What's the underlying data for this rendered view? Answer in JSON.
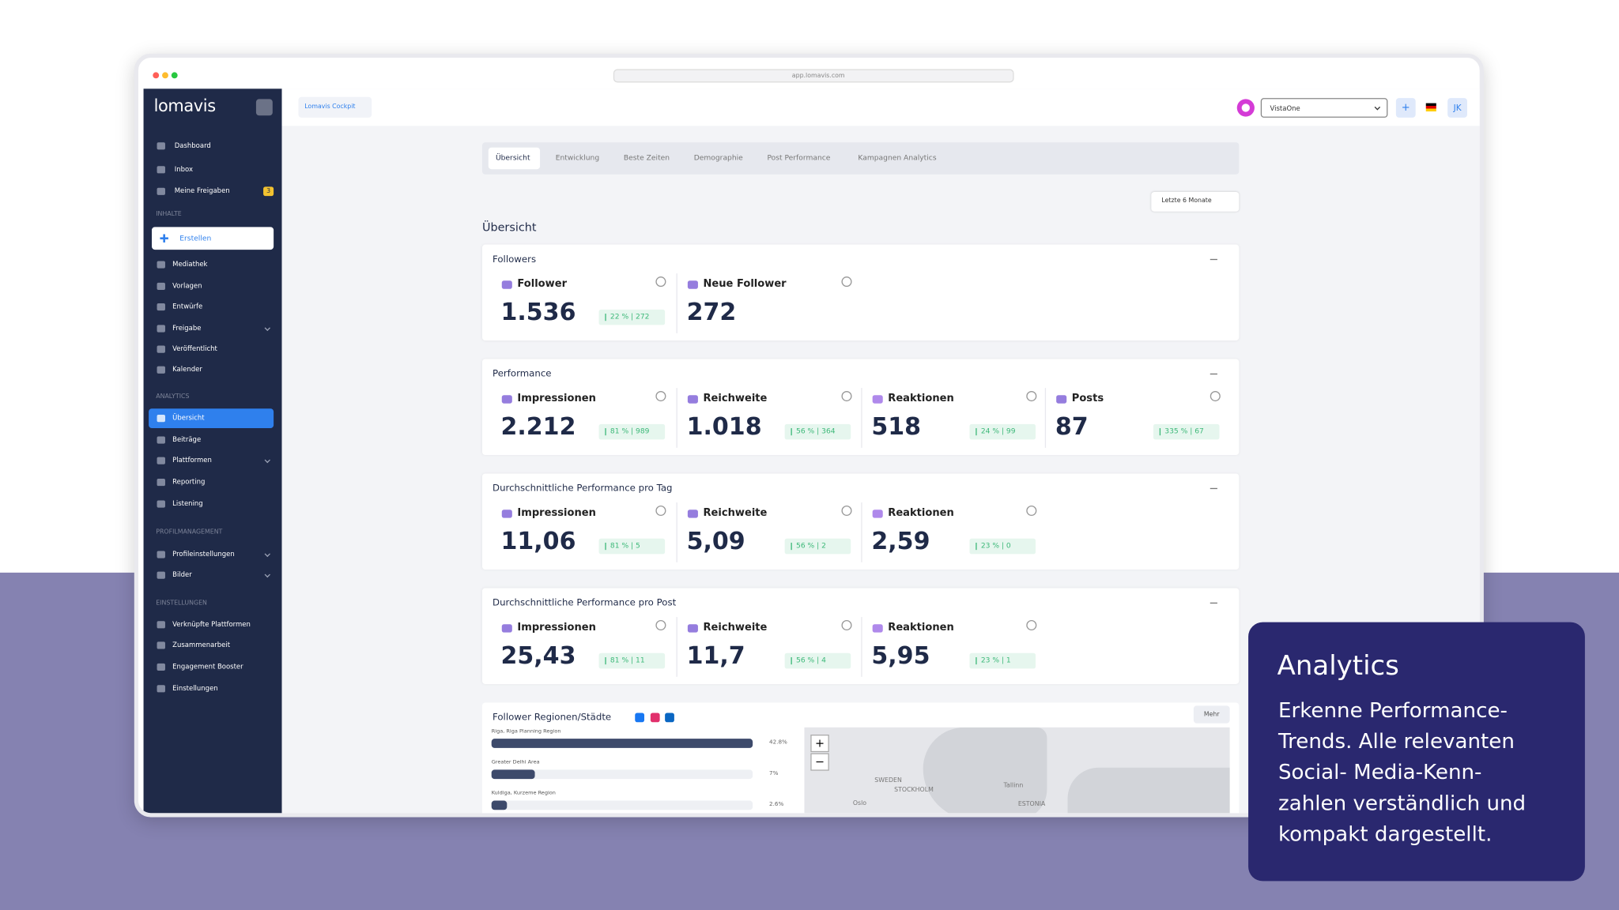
{
  "browser": {
    "url": "app.lomavis.com"
  },
  "sidebar": {
    "logo": "lomavis",
    "entries": [
      {
        "kind": "item",
        "label": "Dashboard"
      },
      {
        "kind": "item",
        "label": "Inbox"
      },
      {
        "kind": "item",
        "label": "Meine Freigaben",
        "badge": "3"
      },
      {
        "kind": "section",
        "label": "INHALTE"
      },
      {
        "kind": "button",
        "label": "Erstellen"
      },
      {
        "kind": "item",
        "label": "Mediathek"
      },
      {
        "kind": "item",
        "label": "Vorlagen"
      },
      {
        "kind": "item",
        "label": "Entwürfe"
      },
      {
        "kind": "item",
        "label": "Freigabe",
        "chevron": true
      },
      {
        "kind": "item",
        "label": "Veröffentlicht"
      },
      {
        "kind": "item",
        "label": "Kalender"
      },
      {
        "kind": "section",
        "label": "ANALYTICS"
      },
      {
        "kind": "item",
        "label": "Übersicht",
        "active": true
      },
      {
        "kind": "item",
        "label": "Beiträge"
      },
      {
        "kind": "item",
        "label": "Plattformen",
        "chevron": true
      },
      {
        "kind": "item",
        "label": "Reporting"
      },
      {
        "kind": "item",
        "label": "Listening"
      },
      {
        "kind": "section",
        "label": "PROFILMANAGEMENT"
      },
      {
        "kind": "item",
        "label": "Profileinstellungen",
        "chevron": true
      },
      {
        "kind": "item",
        "label": "Bilder",
        "chevron": true
      },
      {
        "kind": "section",
        "label": "EINSTELLUNGEN"
      },
      {
        "kind": "item",
        "label": "Verknüpfte Plattformen"
      },
      {
        "kind": "item",
        "label": "Zusammenarbeit"
      },
      {
        "kind": "item",
        "label": "Engagement Booster"
      },
      {
        "kind": "item",
        "label": "Einstellungen"
      }
    ]
  },
  "topbar": {
    "cockpit": "Lomavis Cockpit",
    "account": "VistaOne",
    "add": "+",
    "initials": "JK"
  },
  "tabs": [
    "Übersicht",
    "Entwicklung",
    "Beste Zeiten",
    "Demographie",
    "Post Performance",
    "Kampagnen Analytics"
  ],
  "date_range": "Letzte 6 Monate",
  "section_title": "Übersicht",
  "cards": [
    {
      "title": "Followers",
      "metrics": [
        {
          "label": "Follower",
          "value": "1.536",
          "change": "22 % | 272"
        },
        {
          "label": "Neue Follower",
          "value": "272"
        }
      ]
    },
    {
      "title": "Performance",
      "metrics": [
        {
          "label": "Impressionen",
          "value": "2.212",
          "change": "81 % | 989"
        },
        {
          "label": "Reichweite",
          "value": "1.018",
          "change": "56 % | 364"
        },
        {
          "label": "Reaktionen",
          "value": "518",
          "change": "24 % | 99"
        },
        {
          "label": "Posts",
          "value": "87",
          "change": "335 % | 67"
        }
      ]
    },
    {
      "title": "Durchschnittliche Performance pro Tag",
      "metrics": [
        {
          "label": "Impressionen",
          "value": "11,06",
          "change": "81 % | 5"
        },
        {
          "label": "Reichweite",
          "value": "5,09",
          "change": "56 % | 2"
        },
        {
          "label": "Reaktionen",
          "value": "2,59",
          "change": "23 % | 0"
        }
      ]
    },
    {
      "title": "Durchschnittliche Performance pro Post",
      "metrics": [
        {
          "label": "Impressionen",
          "value": "25,43",
          "change": "81 % | 11"
        },
        {
          "label": "Reichweite",
          "value": "11,7",
          "change": "56 % | 4"
        },
        {
          "label": "Reaktionen",
          "value": "5,95",
          "change": "23 % | 1"
        }
      ]
    }
  ],
  "regions": {
    "title": "Follower Regionen/Städte",
    "more": "Mehr",
    "rows": [
      {
        "name": "Riga, Riga Planning Region",
        "share": "42.8%"
      },
      {
        "name": "Greater Delhi Area",
        "share": "7%"
      },
      {
        "name": "Kuldiga, Kurzeme Region",
        "share": "2.6%"
      }
    ],
    "map": {
      "zoom_in": "+",
      "zoom_out": "−",
      "labels": [
        "Oslo",
        "SWEDEN",
        "STOCKHOLM",
        "Tallinn",
        "ESTONIA"
      ]
    }
  },
  "callout": {
    "title": "Analytics",
    "lines": [
      "Erkenne Performance-",
      "Trends. Alle relevanten",
      "Social- Media-Kenn-",
      "zahlen verständlich und",
      "kompakt dargestellt."
    ]
  }
}
